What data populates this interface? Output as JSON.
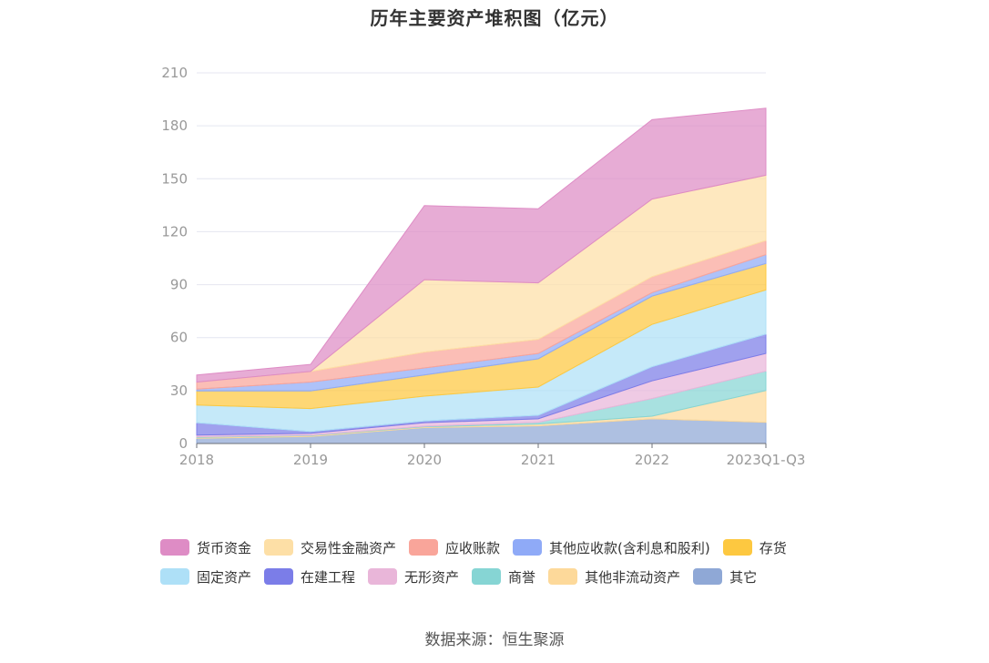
{
  "chart_data": {
    "type": "area",
    "stacked": true,
    "title": "历年主要资产堆积图（亿元）",
    "xlabel": "",
    "ylabel": "",
    "categories": [
      "2018",
      "2019",
      "2020",
      "2021",
      "2022",
      "2023Q1-Q3"
    ],
    "ylim": [
      0,
      210
    ],
    "yticks": [
      0,
      30,
      60,
      90,
      120,
      150,
      180,
      210
    ],
    "grid": true,
    "legend_position": "bottom",
    "series": [
      {
        "name": "其它",
        "color": "#8fa8d6",
        "values": [
          3,
          4,
          9,
          10,
          14,
          12
        ]
      },
      {
        "name": "其他非流动资产",
        "color": "#fdd99a",
        "values": [
          0.5,
          0.5,
          0.5,
          1,
          1.5,
          18
        ]
      },
      {
        "name": "商誉",
        "color": "#86d5d4",
        "values": [
          0.3,
          0.3,
          0.3,
          1,
          10,
          11
        ]
      },
      {
        "name": "无形资产",
        "color": "#e9b6d9",
        "values": [
          1,
          1,
          2,
          2,
          10,
          10
        ]
      },
      {
        "name": "在建工程",
        "color": "#7b7de8",
        "values": [
          7,
          1,
          1,
          2,
          8,
          11
        ]
      },
      {
        "name": "固定资产",
        "color": "#aee0f7",
        "values": [
          10,
          13,
          14,
          16,
          24,
          25
        ]
      },
      {
        "name": "存货",
        "color": "#fdc840",
        "values": [
          8,
          10,
          12,
          16,
          16,
          15
        ]
      },
      {
        "name": "其他应收款(含利息和股利)",
        "color": "#8faaf7",
        "values": [
          1,
          5,
          4,
          3,
          2,
          5
        ]
      },
      {
        "name": "应收账款",
        "color": "#f9a59a",
        "values": [
          4,
          6,
          9,
          8,
          9,
          8
        ]
      },
      {
        "name": "交易性金融资产",
        "color": "#fddfa6",
        "values": [
          0,
          0,
          41,
          32,
          44,
          37
        ]
      },
      {
        "name": "货币资金",
        "color": "#de8cc5",
        "values": [
          4,
          4,
          42,
          42,
          45,
          38
        ]
      }
    ]
  },
  "legend_order": [
    "货币资金",
    "交易性金融资产",
    "应收账款",
    "其他应收款(含利息和股利)",
    "存货",
    "固定资产",
    "在建工程",
    "无形资产",
    "商誉",
    "其他非流动资产",
    "其它"
  ],
  "source": "数据来源：恒生聚源"
}
